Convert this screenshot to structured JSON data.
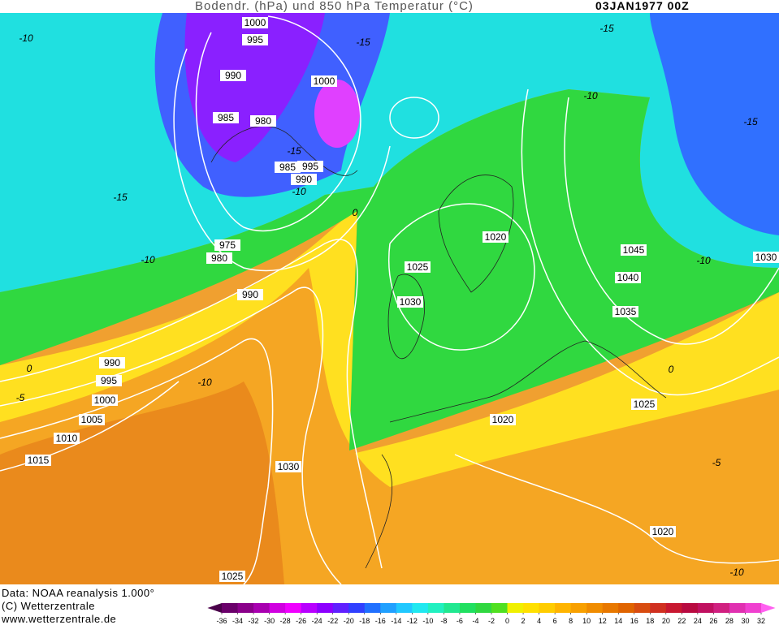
{
  "header": {
    "title": "Bodendr. (hPa) und 850 hPa Temperatur (°C)",
    "date": "03JAN1977 00Z"
  },
  "map": {
    "isobar_labels": [
      "1000",
      "995",
      "990",
      "985",
      "980",
      "1000",
      "985",
      "995",
      "990",
      "975",
      "980",
      "990",
      "1020",
      "1025",
      "1030",
      "1045",
      "1040",
      "1035",
      "1030",
      "990",
      "995",
      "1000",
      "1005",
      "1010",
      "1015",
      "1030",
      "1020",
      "1025",
      "1020",
      "1025"
    ],
    "temperature_labels": [
      "-10",
      "-15",
      "-15",
      "-15",
      "-15",
      "-10",
      "-15",
      "-10",
      "-10",
      "-10",
      "0",
      "0",
      "-5",
      "-10",
      "0",
      "-5",
      "-10"
    ]
  },
  "footer": {
    "data_source": "Data: NOAA reanalysis 1.000°",
    "copyright": "(C) Wetterzentrale",
    "website": "www.wetterzentrale.de"
  },
  "colorbar": {
    "ticks": [
      -36,
      -34,
      -32,
      -30,
      -28,
      -26,
      -24,
      -22,
      -20,
      -18,
      -16,
      -14,
      -12,
      -10,
      -8,
      -6,
      -4,
      -2,
      0,
      2,
      4,
      6,
      8,
      10,
      12,
      14,
      16,
      18,
      20,
      22,
      24,
      26,
      28,
      30,
      32
    ],
    "colors": [
      "#4a004a",
      "#6a006a",
      "#8a008a",
      "#a800b0",
      "#d000e0",
      "#f000ff",
      "#b800ff",
      "#8c00ff",
      "#6020ff",
      "#3040ff",
      "#2070ff",
      "#20a0ff",
      "#20c8ff",
      "#20e8f0",
      "#20f0c0",
      "#20e890",
      "#20e060",
      "#30d840",
      "#50e020",
      "#f0f000",
      "#ffe000",
      "#ffcc00",
      "#ffb400",
      "#f8a000",
      "#f08c00",
      "#e87800",
      "#e06400",
      "#d84c10",
      "#d03020",
      "#c81830",
      "#b80a40",
      "#c01060",
      "#d02080",
      "#e030b0",
      "#f040d0",
      "#ff60f0"
    ]
  }
}
